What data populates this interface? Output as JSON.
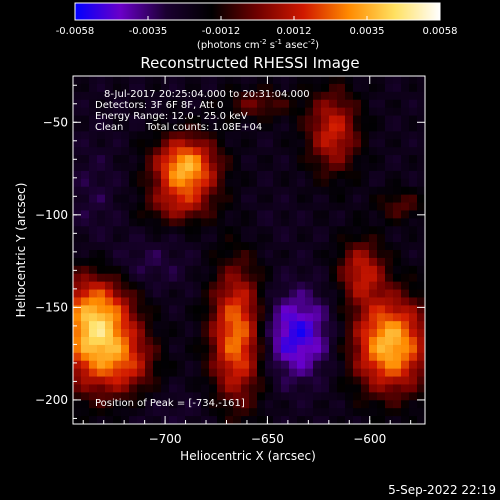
{
  "colorbar": {
    "ticks": [
      "-0.0058",
      "-0.0035",
      "-0.0012",
      "0.0012",
      "0.0035",
      "0.0058"
    ],
    "unit_prefix": "(photons cm",
    "unit_exp1": "-2",
    "unit_mid1": " s",
    "unit_exp2": "-1",
    "unit_mid2": " asec",
    "unit_exp3": "-2",
    "unit_suffix": ")",
    "stops": [
      "#0000ff",
      "#6a00c8",
      "#1a0030",
      "#000000",
      "#700000",
      "#d01800",
      "#ff8a00",
      "#ffe060",
      "#ffffff"
    ]
  },
  "image_info": {
    "line1": "8-Jul-2017 20:25:04.000 to 20:31:04.000",
    "line2": "Detectors: 3F 6F 8F, Att 0",
    "line3": "Energy Range: 12.0 - 25.0 keV",
    "line4_a": "Clean",
    "line4_b": "Total counts: 1.08E+04",
    "peak": "Position of Peak = [-734,-161]"
  },
  "footer": {
    "date": "5-Sep-2022 22:19"
  },
  "chart_data": {
    "type": "heatmap",
    "title": "Reconstructed RHESSI Image",
    "xlabel": "Heliocentric X (arcsec)",
    "ylabel": "Heliocentric Y (arcsec)",
    "xlim": [
      -745,
      -573
    ],
    "ylim": [
      -213,
      -25
    ],
    "xticks": [
      -700,
      -650,
      -600
    ],
    "yticks": [
      -50,
      -100,
      -150,
      -200
    ],
    "background_level": -0.0022,
    "sources": [
      {
        "x": -734,
        "y": -161,
        "peak": 0.0058,
        "sx": 13,
        "sy": 22
      },
      {
        "x": -717,
        "y": -181,
        "peak": 0.0014,
        "sx": 10,
        "sy": 12
      },
      {
        "x": -690,
        "y": -75,
        "peak": 0.0051,
        "sx": 11,
        "sy": 12
      },
      {
        "x": -694,
        "y": -96,
        "peak": 0.0012,
        "sx": 12,
        "sy": 7
      },
      {
        "x": -665,
        "y": -165,
        "peak": 0.0042,
        "sx": 9,
        "sy": 26
      },
      {
        "x": -618,
        "y": -55,
        "peak": 0.0028,
        "sx": 9,
        "sy": 16
      },
      {
        "x": -590,
        "y": -170,
        "peak": 0.0052,
        "sx": 13,
        "sy": 18
      },
      {
        "x": -604,
        "y": -130,
        "peak": 0.0025,
        "sx": 8,
        "sy": 12
      },
      {
        "x": -655,
        "y": -40,
        "peak": 0.0012,
        "sx": 12,
        "sy": 6
      },
      {
        "x": -585,
        "y": -95,
        "peak": 0.001,
        "sx": 8,
        "sy": 6
      },
      {
        "x": -636,
        "y": -165,
        "peak": -0.0038,
        "sx": 12,
        "sy": 16
      },
      {
        "x": -718,
        "y": -128,
        "peak": -0.002,
        "sx": 18,
        "sy": 10
      },
      {
        "x": -735,
        "y": -95,
        "peak": -0.0015,
        "sx": 10,
        "sy": 24
      },
      {
        "x": -700,
        "y": -205,
        "peak": -0.0012,
        "sx": 20,
        "sy": 8
      },
      {
        "x": -650,
        "y": -105,
        "peak": -0.001,
        "sx": 10,
        "sy": 10
      }
    ]
  }
}
